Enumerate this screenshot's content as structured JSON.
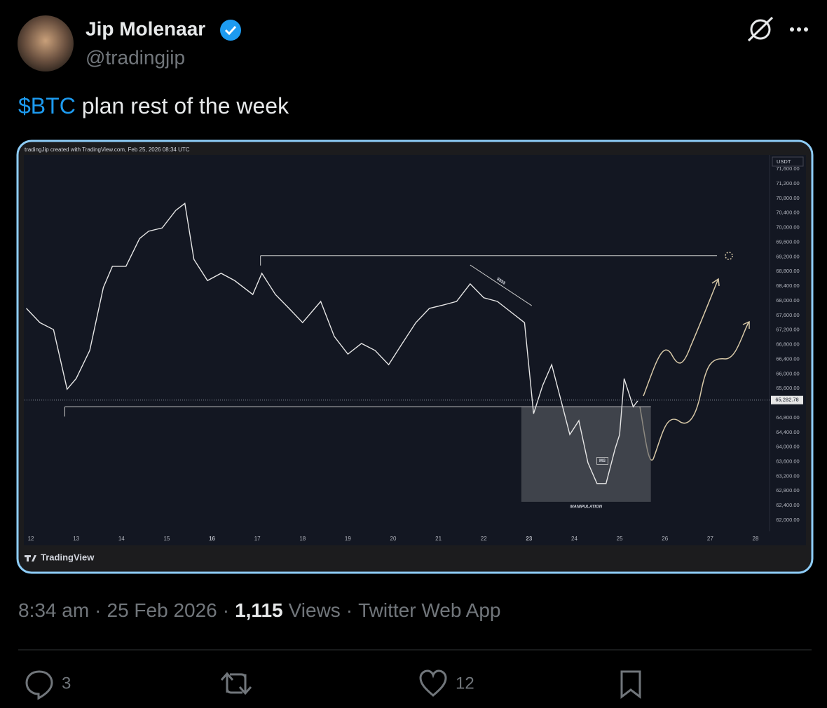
{
  "tweet": {
    "author": {
      "name": "Jip Molenaar",
      "handle": "@tradingjip"
    },
    "text": {
      "cashtag": "$BTC",
      "rest": "plan rest of the week"
    },
    "meta": {
      "time": "8:34 am",
      "date": "25 Feb 2026",
      "views_count": "1,115",
      "views_label": "Views",
      "source": "Twitter Web App",
      "separator": "·"
    },
    "actions": {
      "replies": 3,
      "likes": 12
    }
  },
  "chart_data": {
    "type": "line",
    "header": "tradingJip created with TradingView.com, Feb 25, 2026 08:34 UTC",
    "currency": "USDT",
    "brand": "TradingView",
    "color": "#e6e6e6",
    "x": [
      11.9,
      12.2,
      12.5,
      12.8,
      13.0,
      13.3,
      13.6,
      13.8,
      14.1,
      14.4,
      14.6,
      14.9,
      15.2,
      15.4,
      15.6,
      15.9,
      16.2,
      16.5,
      16.9,
      17.1,
      17.4,
      17.7,
      18.0,
      18.4,
      18.7,
      19.0,
      19.3,
      19.6,
      19.9,
      20.2,
      20.5,
      20.8,
      21.1,
      21.4,
      21.7,
      22.0,
      22.3,
      22.6,
      22.9,
      23.1,
      23.3,
      23.5,
      23.7,
      23.9,
      24.1,
      24.3,
      24.5,
      24.7,
      24.9,
      25.0,
      25.1,
      25.3,
      25.4
    ],
    "values": [
      67790,
      67400,
      67210,
      65580,
      65870,
      66640,
      68360,
      68940,
      68940,
      69700,
      69900,
      69990,
      70470,
      70660,
      69130,
      68550,
      68750,
      68550,
      68170,
      68750,
      68170,
      67790,
      67400,
      67980,
      67020,
      66540,
      66830,
      66640,
      66250,
      66830,
      67400,
      67790,
      67880,
      67980,
      68460,
      68080,
      67980,
      67690,
      67400,
      64910,
      65680,
      66250,
      65300,
      64340,
      64720,
      63570,
      63000,
      63000,
      63950,
      64340,
      65870,
      65100,
      65260
    ],
    "xlim": [
      11.86,
      28.31
    ],
    "ylim": [
      61693,
      71967
    ],
    "xticks": [
      12,
      13,
      14,
      15,
      16,
      17,
      18,
      19,
      20,
      21,
      22,
      23,
      24,
      25,
      26,
      27,
      28
    ],
    "xticks_bold": [
      16,
      23
    ],
    "yticks": [
      {
        "value": 62000,
        "label": "62,000.00"
      },
      {
        "value": 62400,
        "label": "62,400.00"
      },
      {
        "value": 62800,
        "label": "62,800.00"
      },
      {
        "value": 63200,
        "label": "63,200.00"
      },
      {
        "value": 63600,
        "label": "63,600.00"
      },
      {
        "value": 64000,
        "label": "64,000.00"
      },
      {
        "value": 64400,
        "label": "64,400.00"
      },
      {
        "value": 64800,
        "label": "64,800.00"
      },
      {
        "value": 65600,
        "label": "65,600.00"
      },
      {
        "value": 66000,
        "label": "66,000.00"
      },
      {
        "value": 66400,
        "label": "66,400.00"
      },
      {
        "value": 66800,
        "label": "66,800.00"
      },
      {
        "value": 67200,
        "label": "67,200.00"
      },
      {
        "value": 67600,
        "label": "67,600.00"
      },
      {
        "value": 68000,
        "label": "68,000.00"
      },
      {
        "value": 68400,
        "label": "68,400.00"
      },
      {
        "value": 68800,
        "label": "68,800.00"
      },
      {
        "value": 69200,
        "label": "69,200.00"
      },
      {
        "value": 69600,
        "label": "69,600.00"
      },
      {
        "value": 70000,
        "label": "70,000.00"
      },
      {
        "value": 70400,
        "label": "70,400.00"
      },
      {
        "value": 70800,
        "label": "70,800.00"
      },
      {
        "value": 71200,
        "label": "71,200.00"
      },
      {
        "value": 71600,
        "label": "71,600.00"
      }
    ],
    "last_price": {
      "value": 65282.78,
      "label": "65,282.78"
    },
    "levels": [
      {
        "value": 65100,
        "from": 12.75,
        "to": 25.69
      },
      {
        "value": 69230,
        "from": 17.07,
        "to": 27.15
      }
    ],
    "zone": {
      "label": "MANIPULATION",
      "from": 22.83,
      "to": 25.69,
      "low": 62500,
      "high": 65100
    },
    "trendline": {
      "label": "$$$$",
      "x": [
        21.7,
        23.06
      ],
      "y": [
        68976,
        67864
      ]
    },
    "ms": {
      "label": "MS",
      "x": 24.62,
      "y": 63620
    }
  }
}
